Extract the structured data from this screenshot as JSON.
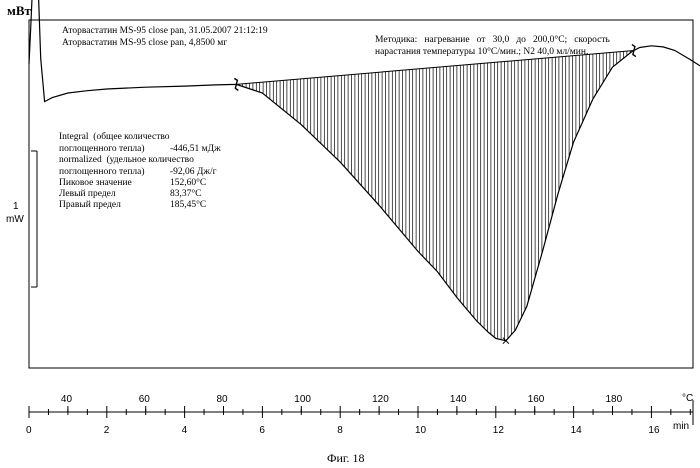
{
  "chart_data": {
    "type": "line",
    "ylabel": "мВт",
    "scale_bar": {
      "value": "1",
      "unit": "mW"
    },
    "sample_lines": [
      "Аторвастатин MS-95 close pan, 31.05.2007 21:12:19",
      "Аторвастатин MS-95 close pan, 4,8500 мг"
    ],
    "method_lines": [
      "Методика:   нагревание   от   30,0   до   200,0°С;   скорость",
      "нарастания температуры 10°С/мин.; N2 40,0 мл/мин."
    ],
    "results": [
      {
        "label": "Integral  (общее количество",
        "value": ""
      },
      {
        "label": "поглощенного тепла)",
        "value": "-446,51 мДж"
      },
      {
        "label": "normalized  (удельное количество",
        "value": ""
      },
      {
        "label": "поглощенного тепла)",
        "value": "-92,06 Дж/г"
      },
      {
        "label": "Пиковое значение",
        "value": "152,60°С"
      },
      {
        "label": "Левый предел",
        "value": "83,37°С"
      },
      {
        "label": "Правый предел",
        "value": "185,45°С"
      }
    ],
    "temp_axis": {
      "unit": "°C",
      "ticks": [
        "40",
        "60",
        "80",
        "100",
        "120",
        "140",
        "160",
        "180"
      ],
      "tick_values": [
        40,
        60,
        80,
        100,
        120,
        140,
        160,
        180
      ]
    },
    "time_axis": {
      "unit": "min",
      "ticks": [
        "0",
        "2",
        "4",
        "6",
        "8",
        "10",
        "12",
        "14",
        "16"
      ],
      "tick_values": [
        0,
        2,
        4,
        6,
        8,
        10,
        12,
        14,
        16
      ],
      "range": [
        0,
        17.3
      ]
    },
    "series": [
      {
        "x": [
          0.0,
          0.05,
          0.1,
          0.18,
          0.25,
          0.3,
          0.4,
          0.6,
          1.0,
          1.5,
          2.0,
          3.0,
          4.0,
          4.8,
          5.33,
          6.0,
          7.0,
          8.0,
          9.0,
          10.0,
          10.5,
          11.0,
          11.5,
          11.8,
          12.0,
          12.26,
          12.5,
          12.8,
          13.2,
          13.6,
          14.0,
          14.5,
          15.0,
          15.5,
          15.7,
          16.0,
          16.3,
          16.6,
          17.0,
          17.3
        ],
        "y": [
          0.5,
          1.2,
          2.0,
          2.5,
          1.6,
          0.6,
          -0.15,
          -0.08,
          0.0,
          0.04,
          0.07,
          0.1,
          0.12,
          0.14,
          0.15,
          0.0,
          -0.55,
          -1.2,
          -1.95,
          -2.75,
          -3.1,
          -3.55,
          -3.95,
          -4.15,
          -4.26,
          -4.3,
          -4.12,
          -3.7,
          -2.75,
          -1.75,
          -0.85,
          -0.1,
          0.45,
          0.72,
          0.79,
          0.82,
          0.8,
          0.74,
          0.58,
          0.45
        ]
      }
    ],
    "integration": {
      "left_min": 5.33,
      "right_min": 15.55,
      "peak_min": 12.26
    }
  },
  "caption": "Фиг. 18"
}
